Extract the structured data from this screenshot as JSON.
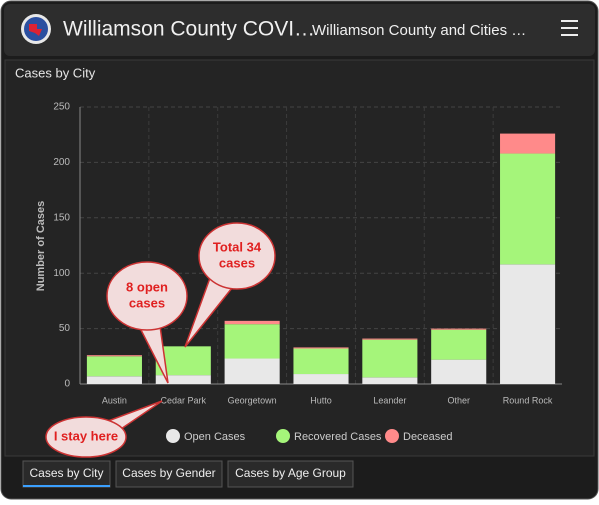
{
  "header": {
    "title": "Williamson County COVI…",
    "subtitle": "Williamson County and Cities …"
  },
  "panel": {
    "title": "Cases by City"
  },
  "chart_data": {
    "type": "stacked-bar",
    "y_label": "Number of Cases",
    "categories": [
      "Austin",
      "Cedar Park",
      "Georgetown",
      "Hutto",
      "Leander",
      "Other",
      "Round Rock"
    ],
    "series": [
      {
        "name": "Open Cases",
        "color": "#e8e8e8",
        "values": [
          7,
          8,
          23,
          9,
          6,
          22,
          108
        ]
      },
      {
        "name": "Recovered Cases",
        "color": "#a5f57a",
        "values": [
          18,
          26,
          31,
          23,
          34,
          27,
          100
        ]
      },
      {
        "name": "Deceased",
        "color": "#ff8a8a",
        "values": [
          1,
          0,
          3,
          1,
          1,
          1,
          18
        ]
      }
    ],
    "ylim": [
      0,
      250
    ],
    "yticks": [
      0,
      50,
      100,
      150,
      200,
      250
    ],
    "grid": true
  },
  "callouts": [
    {
      "lines": [
        "Total 34",
        "cases"
      ]
    },
    {
      "lines": [
        "8 open",
        "cases"
      ]
    },
    {
      "lines": [
        "I stay here"
      ]
    }
  ],
  "tabs": [
    "Cases by City",
    "Cases by Gender",
    "Cases by Age Group"
  ]
}
